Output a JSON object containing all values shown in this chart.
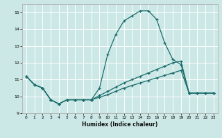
{
  "xlabel": "Humidex (Indice chaleur)",
  "xlim": [
    -0.5,
    23.5
  ],
  "ylim": [
    9,
    15.5
  ],
  "yticks": [
    9,
    10,
    11,
    12,
    13,
    14,
    15
  ],
  "xticks": [
    0,
    1,
    2,
    3,
    4,
    5,
    6,
    7,
    8,
    9,
    10,
    11,
    12,
    13,
    14,
    15,
    16,
    17,
    18,
    19,
    20,
    21,
    22,
    23
  ],
  "bg_color": "#cce8e6",
  "grid_color": "#ffffff",
  "line_color": "#1a6b6b",
  "curve1_x": [
    0,
    1,
    2,
    3,
    4,
    5,
    6,
    7,
    8,
    9,
    10,
    11,
    12,
    13,
    14,
    15,
    16,
    17,
    18,
    19,
    20,
    21,
    22,
    23
  ],
  "curve1_y": [
    11.2,
    10.7,
    10.5,
    9.8,
    9.55,
    9.8,
    9.8,
    9.8,
    9.8,
    10.5,
    12.5,
    13.7,
    14.5,
    14.8,
    15.1,
    15.1,
    14.6,
    13.2,
    12.2,
    11.9,
    10.2,
    10.2,
    10.2,
    10.2
  ],
  "curve2_x": [
    0,
    1,
    2,
    3,
    4,
    5,
    6,
    7,
    8,
    9,
    10,
    11,
    12,
    13,
    14,
    15,
    16,
    17,
    18,
    19,
    20,
    21,
    22,
    23
  ],
  "curve2_y": [
    11.2,
    10.7,
    10.5,
    9.8,
    9.55,
    9.8,
    9.8,
    9.8,
    9.8,
    9.95,
    10.1,
    10.3,
    10.5,
    10.65,
    10.8,
    10.95,
    11.1,
    11.25,
    11.4,
    11.55,
    10.2,
    10.2,
    10.2,
    10.2
  ],
  "curve3_x": [
    0,
    1,
    2,
    3,
    4,
    5,
    6,
    7,
    8,
    9,
    10,
    11,
    12,
    13,
    14,
    15,
    16,
    17,
    18,
    19,
    20,
    21,
    22,
    23
  ],
  "curve3_y": [
    11.2,
    10.7,
    10.5,
    9.8,
    9.55,
    9.8,
    9.8,
    9.8,
    9.8,
    10.05,
    10.3,
    10.55,
    10.8,
    11.0,
    11.2,
    11.4,
    11.6,
    11.8,
    12.0,
    12.1,
    10.2,
    10.2,
    10.2,
    10.2
  ]
}
